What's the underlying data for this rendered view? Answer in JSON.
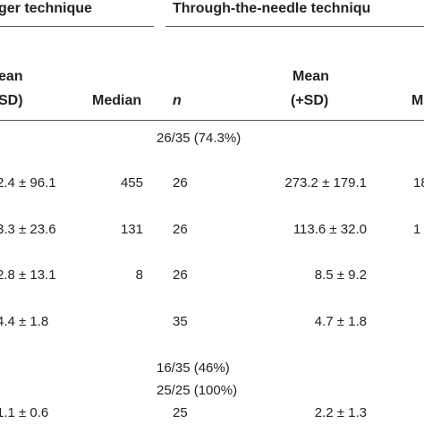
{
  "header": {
    "group_left": "ger technique",
    "group_right": "Through-the-needle techniqu",
    "columns": {
      "mean_left_1": "ean",
      "mean_left_2": "SD)",
      "median_left": "Median",
      "n_right": "n",
      "mean_right_1": "Mean",
      "mean_right_2": "(+SD)",
      "median_right": "M"
    }
  },
  "table": {
    "rows": [
      [
        "",
        "",
        "26/35 (74.3%)",
        "",
        ""
      ],
      [
        "2.4 ± 96.1",
        "455",
        "26",
        "273.2 ± 179.1",
        "18"
      ],
      [
        "3.3 ± 23.6",
        "131",
        "26",
        "113.6 ± 32.0",
        "1"
      ],
      [
        "2.8 ± 13.1",
        "8",
        "26",
        "8.5 ± 9.2",
        ""
      ],
      [
        "4.4 ± 1.8",
        "",
        "35",
        "4.7 ± 1.8",
        ""
      ],
      [
        "",
        "",
        "16/35 (46%)",
        "",
        ""
      ],
      [
        "",
        "",
        "25/25 (100%)",
        "",
        ""
      ],
      [
        "1.1 ± 0.6",
        "",
        "25",
        "2.2 ± 1.3",
        ""
      ]
    ]
  }
}
